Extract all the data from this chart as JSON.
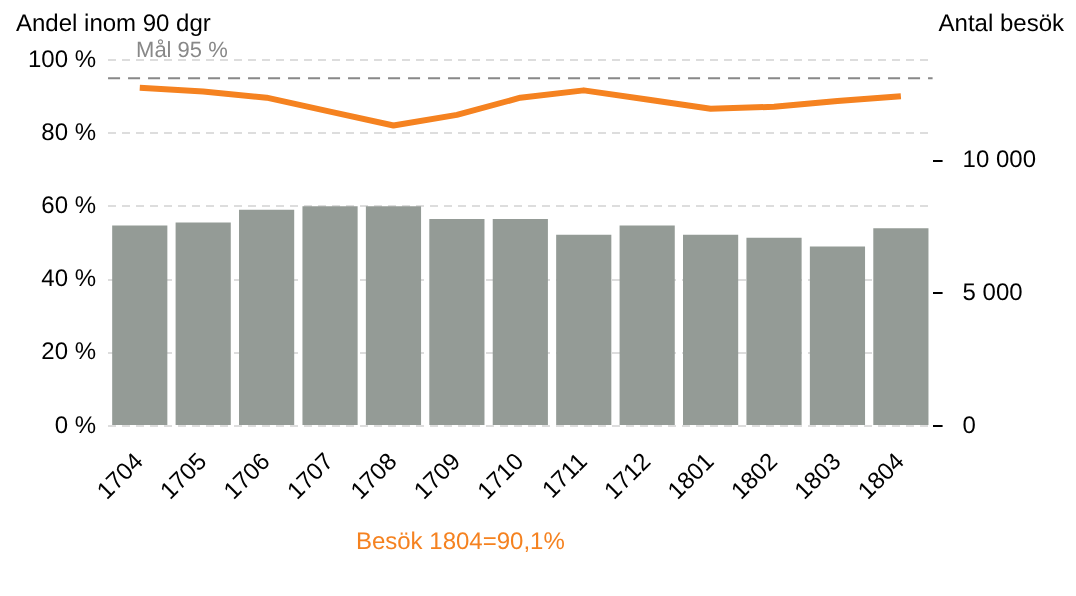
{
  "chart_data": {
    "type": "bar",
    "ylabel": "Andel inom 90 dgr",
    "y2label": "Antal besök",
    "categories": [
      "1704",
      "1705",
      "1706",
      "1707",
      "1708",
      "1709",
      "1710",
      "1711",
      "1712",
      "1801",
      "1802",
      "1803",
      "1804"
    ],
    "series": [
      {
        "type": "bar",
        "axis": "y2",
        "color": "#949b96",
        "values": [
          7560,
          7670,
          8150,
          8280,
          8280,
          7800,
          7800,
          7210,
          7560,
          7210,
          7100,
          6770,
          7450
        ]
      },
      {
        "type": "line",
        "axis": "y",
        "color": "#f58220",
        "values": [
          92.4,
          91.4,
          89.7,
          85.9,
          82.1,
          85.0,
          89.7,
          91.7,
          89.2,
          86.7,
          87.2,
          88.8,
          90.1
        ]
      }
    ],
    "ylim": [
      0,
      100
    ],
    "yticks": [
      {
        "value": 0,
        "label": "0 %"
      },
      {
        "value": 20,
        "label": "20 %"
      },
      {
        "value": 40,
        "label": "40 %"
      },
      {
        "value": 60,
        "label": "60 %"
      },
      {
        "value": 80,
        "label": "80 %"
      },
      {
        "value": 100,
        "label": "100 %"
      }
    ],
    "y2lim": [
      0,
      13800
    ],
    "y2ticks": [
      {
        "value": 0,
        "label": "0"
      },
      {
        "value": 5000,
        "label": "5 000"
      },
      {
        "value": 10000,
        "label": "10 000"
      }
    ],
    "ref_lines": [
      {
        "axis": "y",
        "value": 95,
        "label": "Mål 95 %",
        "color": "#888888",
        "line_style": "dashed"
      }
    ],
    "annotations": [
      "Besök 1804=90,1%"
    ],
    "grid": "y",
    "legend": false,
    "marker": "none",
    "line_style": "solid"
  }
}
